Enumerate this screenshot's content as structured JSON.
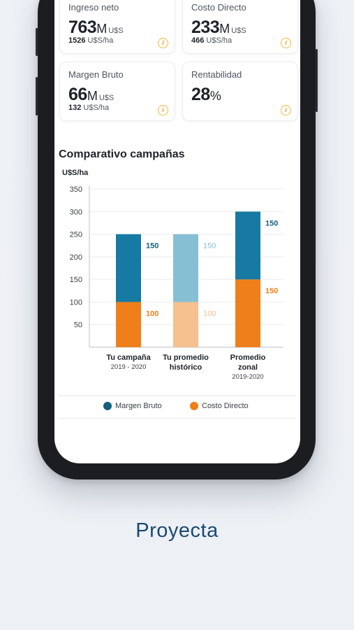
{
  "cards": [
    {
      "label": "Ingreso neto",
      "value": "763",
      "suffix": "M",
      "currency": "U$S",
      "sub_value": "1526",
      "sub_unit": "U$S/ha",
      "info": "i"
    },
    {
      "label": "Costo Directo",
      "value": "233",
      "suffix": "M",
      "currency": "U$S",
      "sub_value": "466",
      "sub_unit": "U$S/ha",
      "info": "i"
    },
    {
      "label": "Margen Bruto",
      "value": "66",
      "suffix": "M",
      "currency": "U$S",
      "sub_value": "132",
      "sub_unit": "U$S/ha",
      "info": "i"
    },
    {
      "label": "Rentabilidad",
      "value": "28",
      "suffix": "%",
      "currency": "",
      "sub_value": "",
      "sub_unit": "",
      "info": "i"
    }
  ],
  "section_title": "Comparativo campañas",
  "chart_data": {
    "type": "bar",
    "stacked": true,
    "ylabel": "U$S/ha",
    "ylim": [
      0,
      350
    ],
    "yticks": [
      50,
      100,
      150,
      200,
      250,
      300,
      350
    ],
    "grid": true,
    "categories": [
      {
        "name": "Tu campaña",
        "sub": "2019 - 2020"
      },
      {
        "name": "Tu promedio histórico",
        "sub": ""
      },
      {
        "name": "Promedio zonal",
        "sub": "2019-2020"
      }
    ],
    "series": [
      {
        "name": "Costo Directo",
        "color": "#ef7f1a",
        "faded_color": "#f6c08f",
        "values": [
          100,
          100,
          150
        ]
      },
      {
        "name": "Margen Bruto",
        "color": "#167aa3",
        "faded_color": "#86bfd3",
        "values": [
          150,
          150,
          150
        ]
      }
    ],
    "faded_category_index": 1
  },
  "legend": [
    {
      "label": "Margen Bruto",
      "color": "#155f7d"
    },
    {
      "label": "Costo Directo",
      "color": "#ef7f1a"
    }
  ],
  "footer_title": "Proyecta"
}
